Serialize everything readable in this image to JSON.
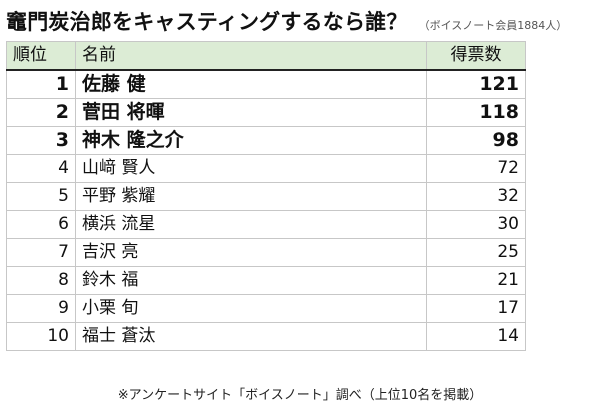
{
  "title": "竈門炭治郎をキャスティングするなら誰？",
  "title_note": "（ボイスノート会員1884人）",
  "table": {
    "headers": {
      "rank": "順位",
      "name": "名前",
      "votes": "得票数"
    },
    "header_bg": "#dcecd5",
    "rows": [
      {
        "rank": "1",
        "name": "佐藤 健",
        "votes": "121"
      },
      {
        "rank": "2",
        "name": "菅田 将暉",
        "votes": "118"
      },
      {
        "rank": "3",
        "name": "神木 隆之介",
        "votes": "98"
      },
      {
        "rank": "4",
        "name": "山﨑 賢人",
        "votes": "72"
      },
      {
        "rank": "5",
        "name": "平野 紫耀",
        "votes": "32"
      },
      {
        "rank": "6",
        "name": "横浜 流星",
        "votes": "30"
      },
      {
        "rank": "7",
        "name": "吉沢 亮",
        "votes": "25"
      },
      {
        "rank": "8",
        "name": "鈴木 福",
        "votes": "21"
      },
      {
        "rank": "9",
        "name": "小栗 旬",
        "votes": "17"
      },
      {
        "rank": "10",
        "name": "福士 蒼汰",
        "votes": "14"
      }
    ]
  },
  "footnote": "※アンケートサイト「ボイスノート」調べ（上位10名を掲載）"
}
